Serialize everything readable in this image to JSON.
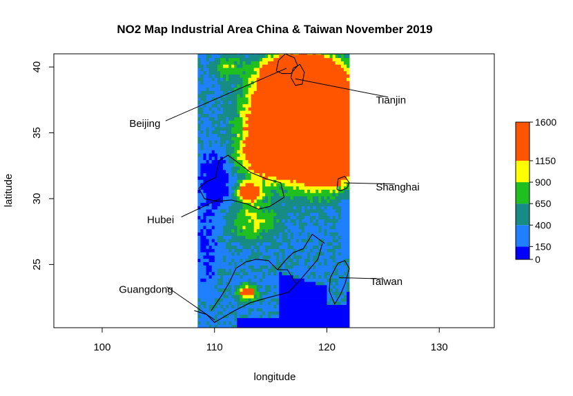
{
  "chart_data": {
    "type": "heatmap",
    "title": "NO2 Map Industrial Area China & Taiwan November 2019",
    "xlabel": "longitude",
    "ylabel": "latitude",
    "xlim": [
      95.7,
      134.9
    ],
    "ylim": [
      20.2,
      41.0
    ],
    "x_ticks": [
      100,
      110,
      120,
      130
    ],
    "y_ticks": [
      25,
      30,
      35,
      40
    ],
    "data_extent": {
      "lon": [
        108.5,
        122.0
      ],
      "lat": [
        20.2,
        41.0
      ]
    },
    "colorbar": {
      "breaks": [
        0,
        150,
        400,
        650,
        900,
        1150,
        1600
      ],
      "tick_labels": [
        "0",
        "150",
        "400",
        "650",
        "900",
        "1150",
        "1600"
      ],
      "colors": [
        "#0000ff",
        "#1e7fff",
        "#168c84",
        "#1ebf1e",
        "#ffff00",
        "#ff5500"
      ]
    },
    "grid": false,
    "legend_position": "right",
    "annotations": [
      {
        "label": "Beijing",
        "city": [
          116.4,
          39.9
        ],
        "text_at": [
          103.8,
          35.7
        ]
      },
      {
        "label": "Tianjin",
        "city": [
          117.2,
          39.1
        ],
        "text_at": [
          125.7,
          37.5
        ]
      },
      {
        "label": "Shanghai",
        "city": [
          121.5,
          31.2
        ],
        "text_at": [
          126.3,
          30.9
        ]
      },
      {
        "label": "Hubei",
        "city": [
          110.5,
          30.0
        ],
        "text_at": [
          105.2,
          28.4
        ]
      },
      {
        "label": "Guangdong",
        "city": [
          110.0,
          20.8
        ],
        "text_at": [
          103.9,
          23.1
        ]
      },
      {
        "label": "Taiwan",
        "city": [
          121.1,
          24.0
        ],
        "text_at": [
          125.3,
          23.7
        ]
      }
    ]
  }
}
